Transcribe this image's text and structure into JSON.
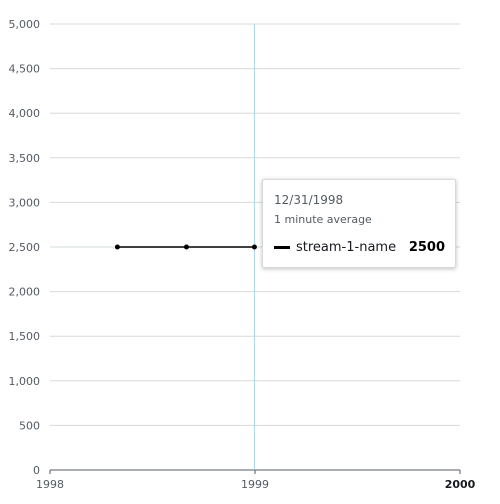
{
  "chart_data": {
    "type": "line",
    "title": "",
    "xlabel": "",
    "ylabel": "",
    "x_ticks": [
      "1998",
      "1999",
      "2000"
    ],
    "y_ticks": [
      "0",
      "500",
      "1,000",
      "1,500",
      "2,000",
      "2,500",
      "3,000",
      "3,500",
      "4,000",
      "4,500",
      "5,000"
    ],
    "xlim": [
      "1998-01-01",
      "2000-01-01"
    ],
    "ylim": [
      0,
      5000
    ],
    "grid": true,
    "series": [
      {
        "name": "stream-1-name",
        "color": "#000000",
        "x": [
          "1998-05-01",
          "1998-09-01",
          "1998-12-31"
        ],
        "y": [
          2500,
          2500,
          2500
        ]
      }
    ],
    "crosshair_x": "1998-12-31"
  },
  "tooltip": {
    "date": "12/31/1998",
    "stat": "1 minute average",
    "series_name": "stream-1-name",
    "value": "2500"
  }
}
